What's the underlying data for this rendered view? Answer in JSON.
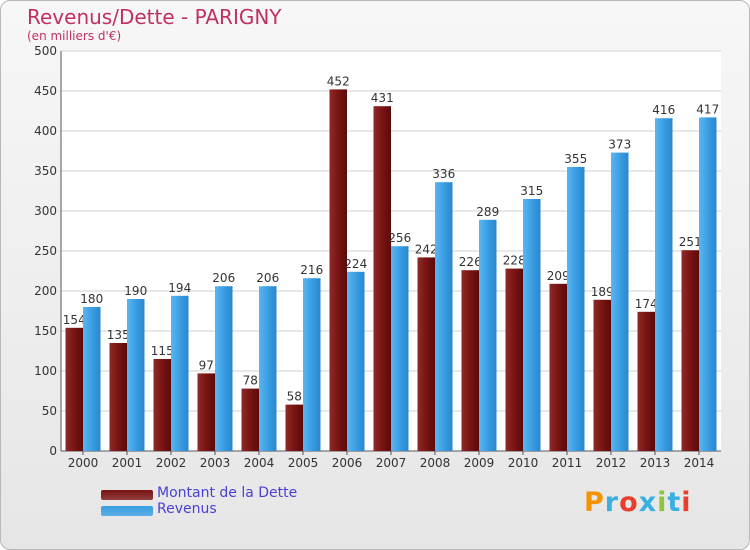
{
  "header": {
    "title": "Revenus/Dette - PARIGNY",
    "subtitle": "(en milliers d'€)"
  },
  "legend": {
    "items": [
      {
        "label": "Montant de la Dette",
        "color": "#7a1212"
      },
      {
        "label": "Revenus",
        "color": "#3a9ee4"
      }
    ]
  },
  "brand": {
    "logo_text": "Proxiti",
    "colors": [
      "#f29400",
      "#3ab0e2",
      "#e83f2c",
      "#3ab0e2",
      "#8cc63f",
      "#3ab0e2",
      "#e83f2c"
    ]
  },
  "chart_data": {
    "type": "bar",
    "categories": [
      "2000",
      "2001",
      "2002",
      "2003",
      "2004",
      "2005",
      "2006",
      "2007",
      "2008",
      "2009",
      "2010",
      "2011",
      "2012",
      "2013",
      "2014"
    ],
    "series": [
      {
        "name": "Montant de la Dette",
        "color": "#7a1212",
        "values": [
          154,
          135,
          115,
          97,
          78,
          58,
          452,
          431,
          242,
          226,
          228,
          209,
          189,
          174,
          251
        ]
      },
      {
        "name": "Revenus",
        "color": "#3a9ee4",
        "values": [
          180,
          190,
          194,
          206,
          206,
          216,
          224,
          256,
          336,
          289,
          315,
          355,
          373,
          416,
          417
        ]
      }
    ],
    "title": "Revenus/Dette - PARIGNY",
    "subtitle": "(en milliers d'€)",
    "xlabel": "",
    "ylabel": "",
    "ylim": [
      0,
      500
    ],
    "yticks": [
      0,
      50,
      100,
      150,
      200,
      250,
      300,
      350,
      400,
      450,
      500
    ],
    "grid": true,
    "legend_position": "bottom-left"
  }
}
